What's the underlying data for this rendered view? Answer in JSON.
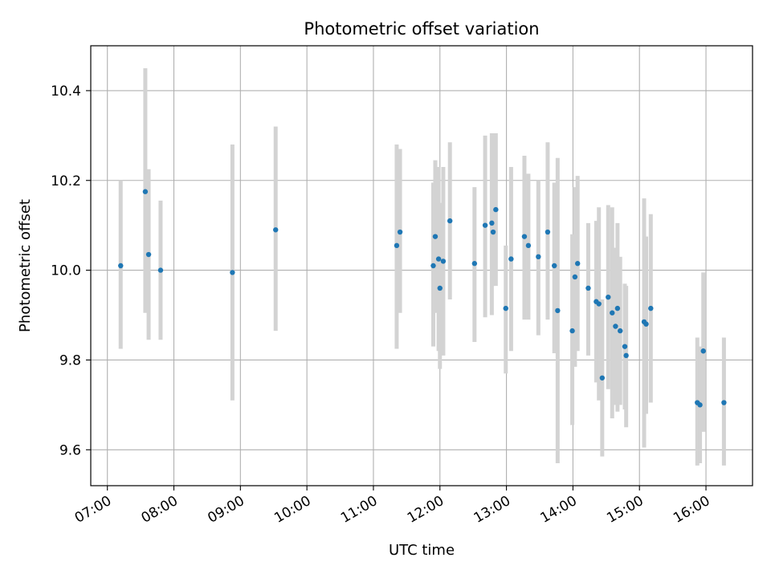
{
  "chart_data": {
    "type": "scatter",
    "title": "Photometric offset variation",
    "xlabel": "UTC time",
    "ylabel": "Photometric offset",
    "x_unit": "hours (UTC)",
    "xlim": [
      6.75,
      16.7
    ],
    "ylim": [
      9.52,
      10.5
    ],
    "x_ticks": [
      7,
      8,
      9,
      10,
      11,
      12,
      13,
      14,
      15,
      16
    ],
    "x_tick_labels": [
      "07:00",
      "08:00",
      "09:00",
      "10:00",
      "11:00",
      "12:00",
      "13:00",
      "14:00",
      "15:00",
      "16:00"
    ],
    "y_ticks": [
      9.6,
      9.8,
      10.0,
      10.2,
      10.4
    ],
    "y_tick_labels": [
      "9.6",
      "9.8",
      "10.0",
      "10.2",
      "10.4"
    ],
    "grid": true,
    "marker_color": "#1f77b4",
    "errorbar_color": "#d3d3d3",
    "points": [
      {
        "x": 7.2,
        "y": 10.01,
        "lo": 9.825,
        "hi": 10.2
      },
      {
        "x": 7.57,
        "y": 10.175,
        "lo": 9.905,
        "hi": 10.45
      },
      {
        "x": 7.62,
        "y": 10.035,
        "lo": 9.845,
        "hi": 10.225
      },
      {
        "x": 7.8,
        "y": 10.0,
        "lo": 9.845,
        "hi": 10.155
      },
      {
        "x": 8.88,
        "y": 9.995,
        "lo": 9.71,
        "hi": 10.28
      },
      {
        "x": 9.53,
        "y": 10.09,
        "lo": 9.865,
        "hi": 10.32
      },
      {
        "x": 11.35,
        "y": 10.055,
        "lo": 9.825,
        "hi": 10.28
      },
      {
        "x": 11.4,
        "y": 10.085,
        "lo": 9.905,
        "hi": 10.27
      },
      {
        "x": 11.9,
        "y": 10.01,
        "lo": 9.83,
        "hi": 10.195
      },
      {
        "x": 11.93,
        "y": 10.075,
        "lo": 9.905,
        "hi": 10.245
      },
      {
        "x": 11.98,
        "y": 10.025,
        "lo": 9.82,
        "hi": 10.23
      },
      {
        "x": 12.0,
        "y": 9.96,
        "lo": 9.78,
        "hi": 10.15
      },
      {
        "x": 12.05,
        "y": 10.02,
        "lo": 9.81,
        "hi": 10.23
      },
      {
        "x": 12.15,
        "y": 10.11,
        "lo": 9.935,
        "hi": 10.285
      },
      {
        "x": 12.52,
        "y": 10.015,
        "lo": 9.84,
        "hi": 10.185
      },
      {
        "x": 12.68,
        "y": 10.1,
        "lo": 9.895,
        "hi": 10.3
      },
      {
        "x": 12.78,
        "y": 10.105,
        "lo": 9.9,
        "hi": 10.305
      },
      {
        "x": 12.8,
        "y": 10.085,
        "lo": 9.965,
        "hi": 10.305
      },
      {
        "x": 12.84,
        "y": 10.135,
        "lo": 9.965,
        "hi": 10.305
      },
      {
        "x": 12.99,
        "y": 9.915,
        "lo": 9.77,
        "hi": 10.055
      },
      {
        "x": 13.07,
        "y": 10.025,
        "lo": 9.82,
        "hi": 10.23
      },
      {
        "x": 13.27,
        "y": 10.075,
        "lo": 9.89,
        "hi": 10.255
      },
      {
        "x": 13.33,
        "y": 10.055,
        "lo": 9.89,
        "hi": 10.215
      },
      {
        "x": 13.48,
        "y": 10.03,
        "lo": 9.855,
        "hi": 10.2
      },
      {
        "x": 13.62,
        "y": 10.085,
        "lo": 9.89,
        "hi": 10.285
      },
      {
        "x": 13.72,
        "y": 10.01,
        "lo": 9.815,
        "hi": 10.195
      },
      {
        "x": 13.77,
        "y": 9.91,
        "lo": 9.57,
        "hi": 10.25
      },
      {
        "x": 13.99,
        "y": 9.865,
        "lo": 9.655,
        "hi": 10.08
      },
      {
        "x": 14.03,
        "y": 9.985,
        "lo": 9.785,
        "hi": 10.185
      },
      {
        "x": 14.07,
        "y": 10.015,
        "lo": 9.82,
        "hi": 10.21
      },
      {
        "x": 14.23,
        "y": 9.96,
        "lo": 9.81,
        "hi": 10.105
      },
      {
        "x": 14.35,
        "y": 9.93,
        "lo": 9.75,
        "hi": 10.11
      },
      {
        "x": 14.39,
        "y": 9.925,
        "lo": 9.71,
        "hi": 10.14
      },
      {
        "x": 14.44,
        "y": 9.76,
        "lo": 9.585,
        "hi": 9.935
      },
      {
        "x": 14.53,
        "y": 9.94,
        "lo": 9.735,
        "hi": 10.145
      },
      {
        "x": 14.59,
        "y": 9.905,
        "lo": 9.67,
        "hi": 10.14
      },
      {
        "x": 14.64,
        "y": 9.875,
        "lo": 9.7,
        "hi": 10.05
      },
      {
        "x": 14.67,
        "y": 9.915,
        "lo": 9.685,
        "hi": 10.105
      },
      {
        "x": 14.71,
        "y": 9.865,
        "lo": 9.7,
        "hi": 10.03
      },
      {
        "x": 14.78,
        "y": 9.83,
        "lo": 9.69,
        "hi": 9.97
      },
      {
        "x": 14.8,
        "y": 9.81,
        "lo": 9.65,
        "hi": 9.965
      },
      {
        "x": 15.07,
        "y": 9.885,
        "lo": 9.605,
        "hi": 10.16
      },
      {
        "x": 15.1,
        "y": 9.88,
        "lo": 9.68,
        "hi": 10.075
      },
      {
        "x": 15.17,
        "y": 9.915,
        "lo": 9.705,
        "hi": 10.125
      },
      {
        "x": 15.87,
        "y": 9.705,
        "lo": 9.565,
        "hi": 9.85
      },
      {
        "x": 15.91,
        "y": 9.7,
        "lo": 9.57,
        "hi": 9.83
      },
      {
        "x": 15.96,
        "y": 9.82,
        "lo": 9.64,
        "hi": 9.995
      },
      {
        "x": 16.27,
        "y": 9.705,
        "lo": 9.565,
        "hi": 9.85
      }
    ]
  }
}
